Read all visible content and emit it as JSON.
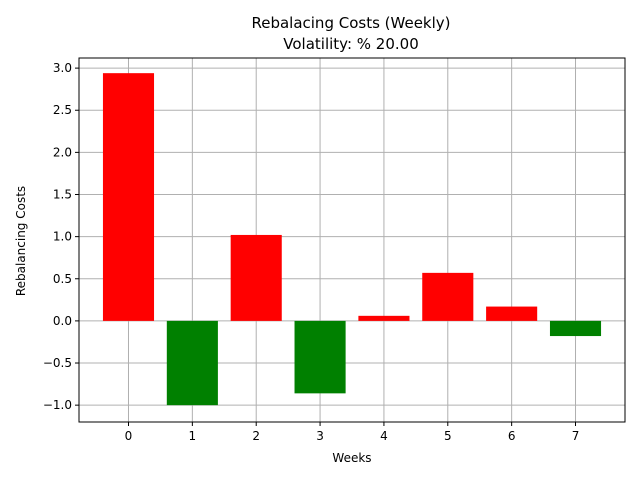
{
  "chart_data": {
    "type": "bar",
    "title": "Rebalacing Costs (Weekly)",
    "subtitle": "Volatility: % 20.00",
    "xlabel": "Weeks",
    "ylabel": "Rebalancing Costs",
    "categories": [
      "0",
      "1",
      "2",
      "3",
      "4",
      "5",
      "6",
      "7"
    ],
    "values": [
      2.94,
      -1.0,
      1.02,
      -0.86,
      0.06,
      0.57,
      0.17,
      -0.18
    ],
    "xlim": [
      -0.775,
      7.775
    ],
    "ylim": [
      -1.2,
      3.12
    ],
    "yticks": [
      -1.0,
      -0.5,
      0.0,
      0.5,
      1.0,
      1.5,
      2.0,
      2.5,
      3.0
    ],
    "ytick_labels": [
      "−1.0",
      "−0.5",
      "0.0",
      "0.5",
      "1.0",
      "1.5",
      "2.0",
      "2.5",
      "3.0"
    ],
    "grid": true,
    "colors": {
      "positive": "#ff0000",
      "negative": "#008000"
    }
  }
}
